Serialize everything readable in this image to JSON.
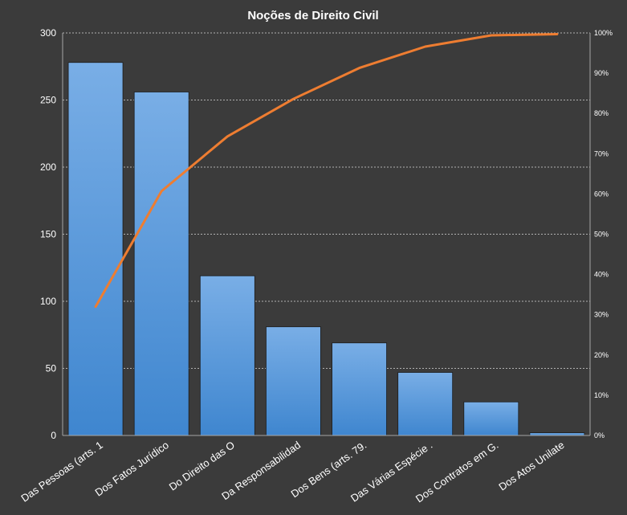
{
  "chart_data": {
    "type": "bar",
    "title": "Noções de Direito  Civil",
    "categories": [
      "Das Pessoas (arts. 1",
      "Dos Fatos Jurídico",
      "Do Direito das O",
      "Da Responsabilidad",
      "Dos Bens (arts. 79.",
      "Das Várias Espécie .",
      "Dos Contratos em G.",
      "Dos Atos Unilate"
    ],
    "series": [
      {
        "values": [
          278,
          256,
          119,
          81,
          69,
          47,
          25,
          2
        ]
      },
      {
        "type": "line",
        "axis": "right",
        "values": [
          32,
          60.7,
          74.3,
          83.6,
          91.3,
          96.6,
          99.4,
          99.7
        ]
      }
    ],
    "ylim": [
      0,
      300
    ],
    "yticks": [
      0,
      50,
      100,
      150,
      200,
      250,
      300
    ],
    "y2lim": [
      0,
      100
    ],
    "y2ticks": [
      "0%",
      "10%",
      "20%",
      "30%",
      "40%",
      "50%",
      "60%",
      "70%",
      "80%",
      "90%",
      "100%"
    ],
    "grid": true,
    "colors": {
      "background": "#3b3b3b",
      "bar_top": "#79aee6",
      "bar_bottom": "#3f86cf",
      "line": "#ee7d31",
      "grid": "#d9d9d9",
      "text": "#ffffff"
    }
  }
}
